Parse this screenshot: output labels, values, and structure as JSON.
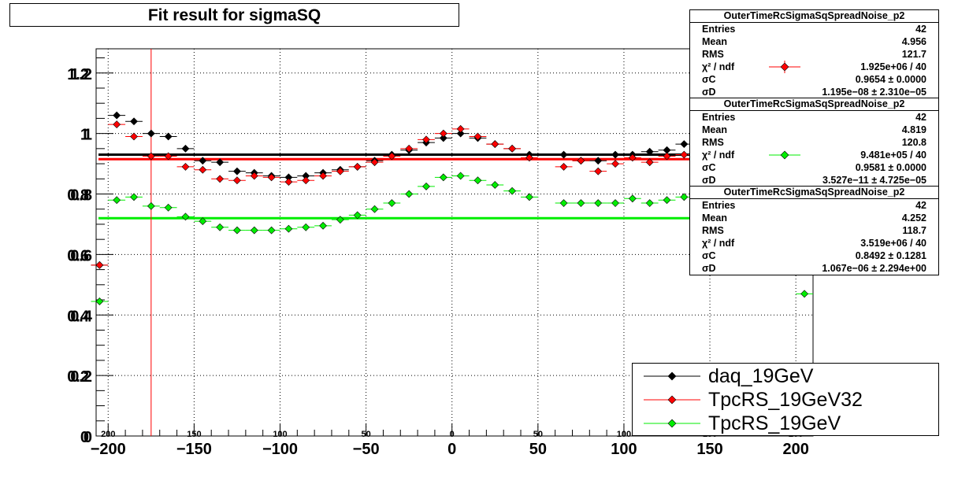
{
  "chart_data": {
    "type": "scatter",
    "title": "Fit result for sigmaSQ",
    "xlim": [
      -207,
      210
    ],
    "ylim": [
      0,
      1.28
    ],
    "xticks": [
      -200,
      -150,
      -100,
      -50,
      0,
      50,
      100,
      150,
      200
    ],
    "xtick_labels": [
      "−200",
      "−150",
      "−100",
      "−50",
      "0",
      "50",
      "100",
      "150",
      "200"
    ],
    "yticks": [
      0,
      0.2,
      0.4,
      0.6,
      0.8,
      1,
      1.2
    ],
    "ytick_labels": [
      "0",
      "0.2",
      "0.4",
      "0.6",
      "0.8",
      "1",
      "1.2"
    ],
    "inner_xtick_labels": [
      "200",
      "150",
      "100",
      "50",
      "0",
      "50",
      "100",
      "150",
      "200"
    ],
    "grid": true,
    "legend_position": "bottom-right",
    "vertical_marker_x": -175,
    "x": [
      -205,
      -195,
      -185,
      -175,
      -165,
      -155,
      -145,
      -135,
      -125,
      -115,
      -105,
      -95,
      -85,
      -75,
      -65,
      -55,
      -45,
      -35,
      -25,
      -15,
      -5,
      5,
      15,
      25,
      35,
      45,
      55,
      65,
      75,
      85,
      95,
      105,
      115,
      125,
      135,
      145,
      155,
      165,
      175,
      185,
      195,
      205
    ],
    "series": [
      {
        "name": "daq_19GeV",
        "color": "#000000",
        "fit_level": 0.93,
        "values": [
          0.565,
          1.06,
          1.04,
          1.0,
          0.99,
          0.95,
          0.91,
          0.905,
          0.875,
          0.87,
          0.86,
          0.855,
          0.86,
          0.87,
          0.88,
          0.89,
          0.91,
          0.93,
          0.945,
          0.97,
          0.985,
          1.0,
          0.985,
          0.965,
          0.95,
          0.93,
          null,
          0.93,
          0.91,
          0.91,
          0.93,
          0.93,
          0.94,
          0.945,
          0.965,
          1.02,
          null,
          null,
          null,
          null,
          null,
          null
        ]
      },
      {
        "name": "TpcRS_19GeV32",
        "color": "#ff0000",
        "fit_level": 0.915,
        "values": [
          0.565,
          1.03,
          0.99,
          0.925,
          0.925,
          0.89,
          0.88,
          0.85,
          0.845,
          0.86,
          0.855,
          0.84,
          0.845,
          0.86,
          0.875,
          0.89,
          0.905,
          0.925,
          0.95,
          0.98,
          1.0,
          1.015,
          0.99,
          0.965,
          0.95,
          0.92,
          null,
          0.89,
          0.91,
          0.875,
          0.9,
          0.92,
          0.905,
          0.925,
          0.93,
          null,
          null,
          null,
          null,
          null,
          null,
          null
        ]
      },
      {
        "name": "TpcRS_19GeV",
        "color": "#00ee00",
        "fit_level": 0.72,
        "values": [
          0.445,
          0.78,
          0.79,
          0.76,
          0.755,
          0.725,
          0.71,
          0.69,
          0.68,
          0.68,
          0.68,
          0.685,
          0.69,
          0.695,
          0.715,
          0.73,
          0.75,
          0.77,
          0.8,
          0.825,
          0.855,
          0.86,
          0.845,
          0.83,
          0.81,
          0.79,
          null,
          0.77,
          0.77,
          0.77,
          0.77,
          0.785,
          0.77,
          0.78,
          0.79,
          0.795,
          null,
          null,
          null,
          null,
          null,
          0.47
        ]
      }
    ]
  },
  "stats": [
    {
      "title": "OuterTimeRcSigmaSqSpreadNoise_p2",
      "color": "#ff0000",
      "rows": [
        {
          "label": "Entries",
          "value": "42"
        },
        {
          "label": "Mean",
          "value": "4.956"
        },
        {
          "label": "RMS",
          "value": "121.7"
        },
        {
          "label": "χ² / ndf",
          "value": "1.925e+06 / 40"
        },
        {
          "label": "σC",
          "value": "0.9654 ± 0.0000"
        },
        {
          "label": "σD",
          "value": "1.195e−08 ± 2.310e−05"
        }
      ]
    },
    {
      "title": "OuterTimeRcSigmaSqSpreadNoise_p2",
      "color": "#00ee00",
      "rows": [
        {
          "label": "Entries",
          "value": "42"
        },
        {
          "label": "Mean",
          "value": "4.819"
        },
        {
          "label": "RMS",
          "value": "120.8"
        },
        {
          "label": "χ² / ndf",
          "value": "9.481e+05 / 40"
        },
        {
          "label": "σC",
          "value": "0.9581 ± 0.0000"
        },
        {
          "label": "σD",
          "value": "3.527e−11 ± 4.725e−05"
        }
      ]
    },
    {
      "title": "OuterTimeRcSigmaSqSpreadNoise_p2",
      "color": "",
      "rows": [
        {
          "label": "Entries",
          "value": "42"
        },
        {
          "label": "Mean",
          "value": "4.252"
        },
        {
          "label": "RMS",
          "value": "118.7"
        },
        {
          "label": "χ² / ndf",
          "value": "3.519e+06 / 40"
        },
        {
          "label": "σC",
          "value": "0.8492 ± 0.1281"
        },
        {
          "label": "σD",
          "value": "1.067e−06 ± 2.294e+00"
        }
      ]
    }
  ]
}
